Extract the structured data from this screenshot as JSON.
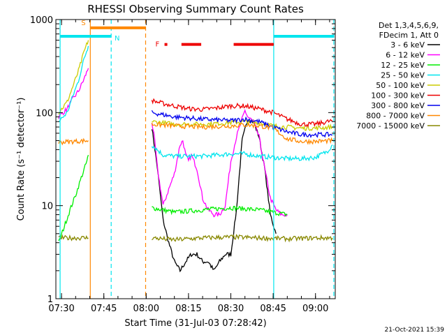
{
  "chart_data": {
    "type": "line",
    "title": "RHESSI Observing Summary Count Rates",
    "xlabel": "Start Time (31-Jul-03 07:28:42)",
    "ylabel": "Count Rate (s⁻¹ detector⁻¹)",
    "yscale": "log",
    "ylim": [
      1,
      1000
    ],
    "xlim_minutes": [
      -2,
      97
    ],
    "x_unit": "minutes after 07:30",
    "x_ticks": [
      {
        "t": 0,
        "label": "07:30"
      },
      {
        "t": 15,
        "label": "07:45"
      },
      {
        "t": 30,
        "label": "08:00"
      },
      {
        "t": 45,
        "label": "08:15"
      },
      {
        "t": 60,
        "label": "08:30"
      },
      {
        "t": 75,
        "label": "08:45"
      },
      {
        "t": 90,
        "label": "09:00"
      }
    ],
    "y_ticks": [
      {
        "v": 1,
        "label": "1"
      },
      {
        "v": 10,
        "label": "10"
      },
      {
        "v": 100,
        "label": "100"
      },
      {
        "v": 1000,
        "label": "1000"
      }
    ],
    "legend": {
      "position": "top-right",
      "header": [
        "Det 1,3,4,5,6,9,",
        "FDecim 1, Att 0"
      ],
      "entries": [
        {
          "label": "3 - 6 keV",
          "color": "#000000"
        },
        {
          "label": "6 - 12 keV",
          "color": "#ff00ff"
        },
        {
          "label": "12 - 25 keV",
          "color": "#00ee00"
        },
        {
          "label": "25 - 50 keV",
          "color": "#00e5ee"
        },
        {
          "label": "50 - 100 keV",
          "color": "#cccc00"
        },
        {
          "label": "100 - 300 keV",
          "color": "#ee0000"
        },
        {
          "label": "300 - 800 keV",
          "color": "#0000ee"
        },
        {
          "label": "800 - 7000 keV",
          "color": "#ff8800"
        },
        {
          "label": "7000 - 15000 keV",
          "color": "#888800"
        }
      ]
    },
    "bars": [
      {
        "label": "S",
        "color": "#ff8800",
        "start": 10.2,
        "end": 29.8,
        "level": 815
      },
      {
        "label": "N",
        "color": "#00e5ee",
        "start": -0.5,
        "end": 17.6,
        "level": 660
      },
      {
        "label": "",
        "color": "#00e5ee",
        "start": 75.2,
        "end": 96.5,
        "level": 660
      },
      {
        "label": "F",
        "color": "#ee0000",
        "start": 36.5,
        "end": 37.5,
        "level": 540
      },
      {
        "label": "",
        "color": "#ee0000",
        "start": 42.5,
        "end": 49.5,
        "level": 540
      },
      {
        "label": "",
        "color": "#ee0000",
        "start": 61.0,
        "end": 75.2,
        "level": 540
      }
    ],
    "vlines": [
      {
        "t": -0.5,
        "color": "#00e5ee",
        "style": "solid"
      },
      {
        "t": 10.2,
        "color": "#ff8800",
        "style": "solid"
      },
      {
        "t": 17.6,
        "color": "#00e5ee",
        "style": "dashed"
      },
      {
        "t": 29.8,
        "color": "#ff8800",
        "style": "dashed"
      },
      {
        "t": 75.2,
        "color": "#00e5ee",
        "style": "solid"
      },
      {
        "t": 96.5,
        "color": "#00e5ee",
        "style": "dashed"
      }
    ],
    "series": [
      {
        "name": "3 - 6 keV",
        "color": "#000000",
        "segments": [
          {
            "t": [
              32,
              34,
              36,
              38,
              40,
              42,
              44,
              46,
              48,
              50,
              52,
              54,
              56,
              58,
              60,
              62,
              64,
              66,
              68,
              70,
              72,
              74,
              76
            ],
            "v": [
              70,
              25,
              7,
              4,
              2.5,
              2,
              2.5,
              3,
              3,
              2.5,
              2.5,
              2,
              2.5,
              3,
              3,
              9,
              50,
              85,
              80,
              55,
              25,
              8,
              5
            ]
          }
        ]
      },
      {
        "name": "6 - 12 keV",
        "color": "#ff00ff",
        "segments": [
          {
            "t": [
              -1,
              2,
              4,
              6,
              8,
              9.5
            ],
            "v": [
              90,
              110,
              140,
              170,
              230,
              300
            ]
          },
          {
            "t": [
              32,
              33,
              34,
              36,
              38,
              40,
              42,
              43,
              44,
              45,
              46,
              48,
              50,
              52,
              54,
              56,
              58,
              60,
              62,
              64,
              65,
              66,
              67,
              68,
              70,
              72,
              74,
              76,
              78,
              80
            ],
            "v": [
              80,
              50,
              25,
              10,
              15,
              22,
              45,
              50,
              35,
              30,
              35,
              25,
              12,
              9,
              8,
              8,
              10,
              30,
              55,
              85,
              105,
              90,
              85,
              80,
              55,
              25,
              12,
              9,
              8,
              8
            ]
          }
        ]
      },
      {
        "name": "12 - 25 keV",
        "color": "#00ee00",
        "segments": [
          {
            "t": [
              -1,
              1,
              3,
              5,
              7,
              9,
              9.5
            ],
            "v": [
              4,
              6,
              9,
              13,
              20,
              30,
              35
            ]
          },
          {
            "t": [
              32,
              40,
              50,
              60,
              70,
              80
            ],
            "v": [
              9.5,
              8.5,
              9,
              9.5,
              9,
              8
            ]
          }
        ]
      },
      {
        "name": "25 - 50 keV",
        "color": "#00e5ee",
        "segments": [
          {
            "t": [
              -1,
              2,
              4,
              6,
              8,
              9.5
            ],
            "v": [
              80,
              100,
              150,
              220,
              380,
              520
            ]
          },
          {
            "t": [
              32,
              36,
              40,
              50,
              60,
              65,
              70,
              75,
              80,
              85,
              90,
              94,
              96
            ],
            "v": [
              45,
              35,
              34,
              34,
              36,
              36,
              34,
              33,
              32,
              32,
              33,
              38,
              45
            ]
          }
        ]
      },
      {
        "name": "50 - 100 keV",
        "color": "#cccc00",
        "segments": [
          {
            "t": [
              -1,
              2,
              4,
              6,
              8,
              9.5
            ],
            "v": [
              100,
              130,
              190,
              280,
              450,
              600
            ]
          },
          {
            "t": [
              32,
              40,
              50,
              60,
              65,
              70,
              75,
              80,
              85,
              90,
              96
            ],
            "v": [
              80,
              75,
              75,
              78,
              80,
              78,
              72,
              70,
              68,
              68,
              70
            ]
          }
        ]
      },
      {
        "name": "100 - 300 keV",
        "color": "#ee0000",
        "segments": [
          {
            "t": [
              32,
              36,
              40,
              45,
              50,
              55,
              60,
              65,
              70,
              75,
              80,
              85,
              90,
              96
            ],
            "v": [
              135,
              125,
              118,
              110,
              108,
              112,
              118,
              118,
              110,
              100,
              85,
              75,
              75,
              82
            ]
          }
        ]
      },
      {
        "name": "300 - 800 keV",
        "color": "#0000ee",
        "segments": [
          {
            "t": [
              32,
              40,
              50,
              60,
              65,
              70,
              75,
              80,
              85,
              90,
              96
            ],
            "v": [
              100,
              90,
              85,
              82,
              85,
              80,
              70,
              62,
              58,
              58,
              58
            ]
          }
        ]
      },
      {
        "name": "800 - 7000 keV",
        "color": "#ff8800",
        "segments": [
          {
            "t": [
              -1,
              9.5
            ],
            "v": [
              48,
              50
            ]
          },
          {
            "t": [
              32,
              40,
              50,
              60,
              65,
              70,
              75,
              80,
              85,
              90,
              96
            ],
            "v": [
              75,
              72,
              70,
              72,
              74,
              72,
              68,
              52,
              49,
              49,
              50
            ]
          }
        ]
      },
      {
        "name": "7000 - 15000 keV",
        "color": "#888800",
        "segments": [
          {
            "t": [
              -1,
              9.5
            ],
            "v": [
              4.5,
              4.5
            ]
          },
          {
            "t": [
              32,
              40,
              50,
              60,
              70,
              80,
              90,
              96
            ],
            "v": [
              4.5,
              4.3,
              4.5,
              4.6,
              4.5,
              4.4,
              4.5,
              4.5
            ]
          }
        ]
      }
    ]
  },
  "footer": {
    "date_stamp": "21-Oct-2021 15:39"
  }
}
